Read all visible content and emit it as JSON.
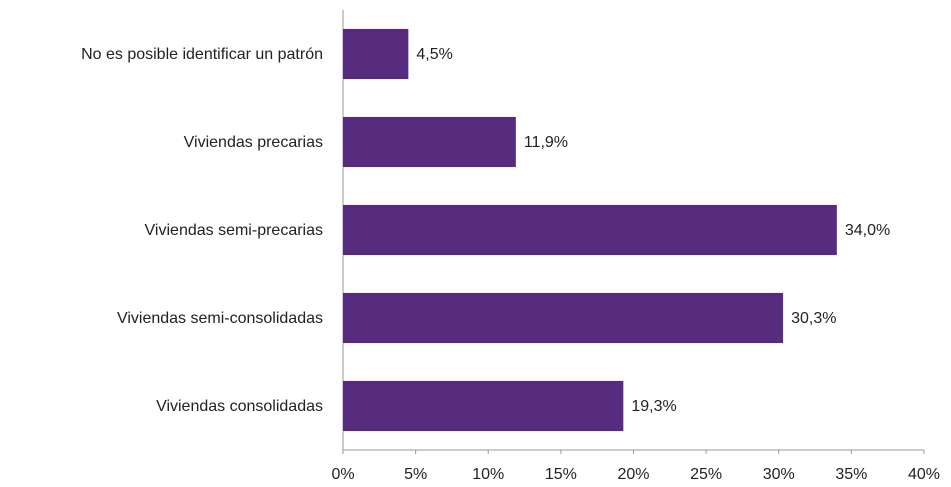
{
  "chart_data": {
    "type": "bar",
    "orientation": "horizontal",
    "categories": [
      "No es posible identificar un patrón",
      "Viviendas precarias",
      "Viviendas semi-precarias",
      "Viviendas semi-consolidadas",
      "Viviendas consolidadas"
    ],
    "values": [
      4.5,
      11.9,
      34.0,
      30.3,
      19.3
    ],
    "value_labels": [
      "4,5%",
      "11,9%",
      "34,0%",
      "30,3%",
      "19,3%"
    ],
    "color": "#572c7e",
    "xlim": [
      0,
      40
    ],
    "xticks": [
      {
        "value": 0,
        "label": "0%"
      },
      {
        "value": 5,
        "label": "5%"
      },
      {
        "value": 10,
        "label": "10%"
      },
      {
        "value": 15,
        "label": "15%"
      },
      {
        "value": 20,
        "label": "20%"
      },
      {
        "value": 25,
        "label": "25%"
      },
      {
        "value": 30,
        "label": "30%"
      },
      {
        "value": 35,
        "label": "35%"
      },
      {
        "value": 40,
        "label": "40%"
      }
    ],
    "grid": false
  }
}
